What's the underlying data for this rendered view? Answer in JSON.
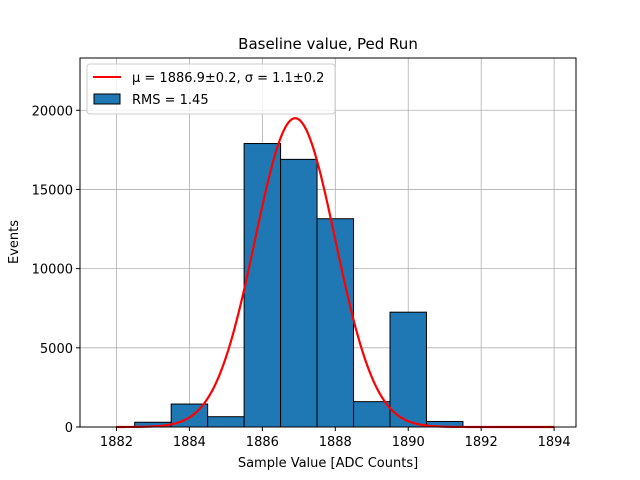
{
  "chart_data": {
    "type": "bar",
    "title": "Baseline value, Ped Run",
    "xlabel": "Sample Value [ADC Counts]",
    "ylabel": "Events",
    "xlim": [
      1881,
      1894.6
    ],
    "ylim": [
      0,
      23300
    ],
    "x_ticks": [
      1882,
      1884,
      1886,
      1888,
      1890,
      1892,
      1894
    ],
    "y_ticks": [
      0,
      5000,
      10000,
      15000,
      20000
    ],
    "grid": true,
    "legend_position": "top-left",
    "histogram": {
      "name": "RMS = 1.45",
      "color": "#1f77b4",
      "edge_color": "#000000",
      "bins": [
        {
          "x0": 1882.5,
          "x1": 1883.5,
          "value": 300
        },
        {
          "x0": 1883.5,
          "x1": 1884.5,
          "value": 1450
        },
        {
          "x0": 1884.5,
          "x1": 1885.5,
          "value": 650
        },
        {
          "x0": 1885.5,
          "x1": 1886.5,
          "value": 17900
        },
        {
          "x0": 1886.5,
          "x1": 1887.5,
          "value": 16900
        },
        {
          "x0": 1887.5,
          "x1": 1888.5,
          "value": 13150
        },
        {
          "x0": 1888.5,
          "x1": 1889.5,
          "value": 1600
        },
        {
          "x0": 1889.5,
          "x1": 1890.5,
          "value": 7250
        },
        {
          "x0": 1890.5,
          "x1": 1891.5,
          "value": 350
        }
      ]
    },
    "fit": {
      "name_prefix": "μ = 1886.9±0.2, ",
      "name_suffix": "σ = 1.1±0.2",
      "color": "#ff0000",
      "mu": 1886.9,
      "sigma": 1.1,
      "amplitude": 19500,
      "x_range": [
        1882,
        1894
      ]
    }
  }
}
